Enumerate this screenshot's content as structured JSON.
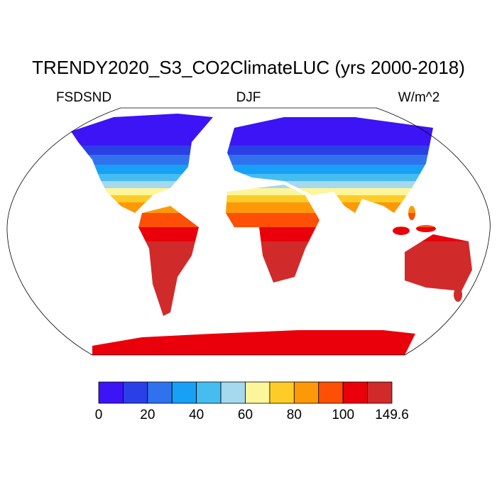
{
  "title": "TRENDY2020_S3_CO2ClimateLUC (yrs 2000-2018)",
  "left_label": "FSDSND",
  "center_label": "DJF",
  "right_label": "W/m^2",
  "colorbar": {
    "colors": [
      "#3c14f5",
      "#2a3fe6",
      "#3072ee",
      "#17a0f5",
      "#45bdf0",
      "#a6d8ee",
      "#fdf59a",
      "#fdcc29",
      "#fd9908",
      "#fd4f06",
      "#e9000b",
      "#d12a2a"
    ],
    "ticks": [
      0,
      20,
      40,
      60,
      80,
      100,
      149.6
    ]
  }
}
